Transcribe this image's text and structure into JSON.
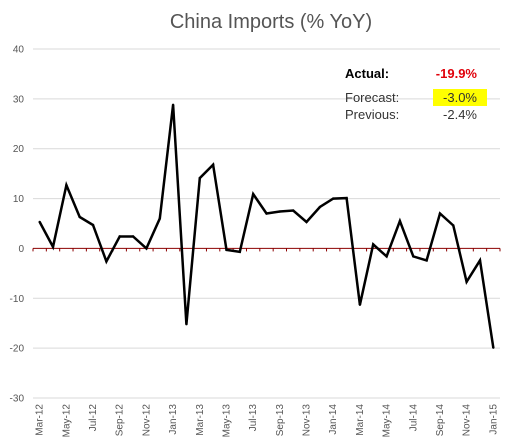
{
  "chart_data": {
    "type": "line",
    "title": "China Imports (% YoY)",
    "xlabel": "",
    "ylabel": "",
    "ylim": [
      -30,
      40
    ],
    "yticks": [
      40,
      30,
      20,
      10,
      0,
      -10,
      -20,
      -30
    ],
    "grid": true,
    "x_tick_labels": [
      "Mar-12",
      "May-12",
      "Jul-12",
      "Sep-12",
      "Nov-12",
      "Jan-13",
      "Mar-13",
      "May-13",
      "Jul-13",
      "Sep-13",
      "Nov-13",
      "Jan-14",
      "Mar-14",
      "May-14",
      "Jul-14",
      "Sep-14",
      "Nov-14",
      "Jan-15"
    ],
    "x": [
      "Mar-12",
      "Apr-12",
      "May-12",
      "Jun-12",
      "Jul-12",
      "Aug-12",
      "Sep-12",
      "Oct-12",
      "Nov-12",
      "Dec-12",
      "Jan-13",
      "Feb-13",
      "Mar-13",
      "Apr-13",
      "May-13",
      "Jun-13",
      "Jul-13",
      "Aug-13",
      "Sep-13",
      "Oct-13",
      "Nov-13",
      "Dec-13",
      "Jan-14",
      "Feb-14",
      "Mar-14",
      "Apr-14",
      "May-14",
      "Jun-14",
      "Jul-14",
      "Aug-14",
      "Sep-14",
      "Oct-14",
      "Nov-14",
      "Dec-14",
      "Jan-15"
    ],
    "series": [
      {
        "color": "#000000",
        "values": [
          5.3,
          0.3,
          12.7,
          6.3,
          4.7,
          -2.6,
          2.4,
          2.4,
          0.0,
          6.0,
          28.8,
          -15.2,
          14.1,
          16.8,
          -0.3,
          -0.7,
          10.9,
          7.0,
          7.4,
          7.6,
          5.3,
          8.3,
          10.0,
          10.1,
          -11.3,
          0.8,
          -1.6,
          5.5,
          -1.6,
          -2.4,
          7.0,
          4.6,
          -6.7,
          -2.4,
          -19.9
        ]
      }
    ],
    "annotations": {
      "actual_label": "Actual:",
      "actual_value": "-19.9%",
      "forecast_label": "Forecast:",
      "forecast_value": "-3.0%",
      "previous_label": "Previous:",
      "previous_value": "-2.4%"
    },
    "colors": {
      "line": "#000000",
      "zero_line": "#8b0000",
      "grid": "#d9d9d9",
      "actual_value": "#e0000a",
      "forecast_highlight": "#ffff00"
    }
  }
}
